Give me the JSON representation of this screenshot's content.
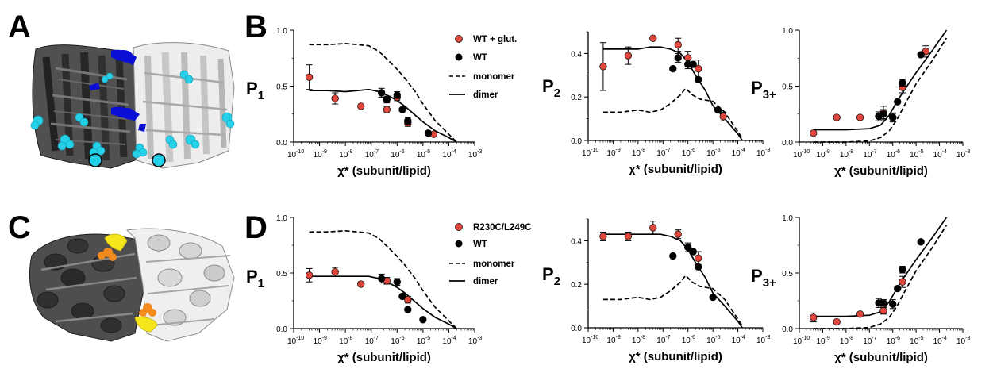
{
  "figure": {
    "panel_letters": [
      "A",
      "B",
      "C",
      "D"
    ],
    "colors": {
      "red_points": "#e0463c",
      "black_points": "#000000",
      "cyan": "#25d1e8",
      "blue": "#0b0fd6",
      "yellow": "#f5e51b",
      "orange": "#f28a1e",
      "dark_helix": "#3a3a3a",
      "light_helix": "#d6d6d6"
    },
    "x_axis": {
      "label": "χ* (subunit/lipid)",
      "scale": "log",
      "tick_base": "10",
      "tick_exponents": [
        "-10",
        "-9",
        "-8",
        "-7",
        "-6",
        "-5",
        "-4",
        "-3"
      ],
      "range": [
        1e-10,
        0.001
      ]
    },
    "y_labels": {
      "p1_main": "P",
      "p1_sub": "1",
      "p2_main": "P",
      "p2_sub": "2",
      "p3_main": "P",
      "p3_sub": "3+"
    },
    "legend_top": [
      "WT + glut.",
      "WT",
      "monomer",
      "dimer"
    ],
    "legend_bottom": [
      "R230C/L249C",
      "WT",
      "monomer",
      "dimer"
    ]
  },
  "chart_data": [
    {
      "panel": "B",
      "type": "scatter",
      "ylabel": "P1",
      "xlabel": "χ* (subunit/lipid)",
      "ylim": [
        0,
        1.0
      ],
      "yticks": [
        "0.0",
        "0.5",
        "1.0"
      ],
      "series": [
        {
          "name": "WT + glut.",
          "x": [
            4e-10,
            4e-09,
            4e-08,
            4e-07,
            1e-06,
            2.6e-06,
            2.6e-05
          ],
          "y": [
            0.58,
            0.39,
            0.32,
            0.29,
            0.4,
            0.17,
            0.07
          ],
          "err": [
            0.11,
            0.05,
            0,
            0.03,
            0.03,
            0.03,
            0.02
          ]
        },
        {
          "name": "WT",
          "x": [
            2.5e-07,
            4e-07,
            1e-06,
            1.6e-06,
            2.6e-06,
            1.6e-05
          ],
          "y": [
            0.44,
            0.38,
            0.42,
            0.29,
            0.19,
            0.08
          ],
          "err": [
            0.04,
            0.03,
            0.03,
            0,
            0.03,
            0
          ]
        },
        {
          "name": "monomer",
          "line": [
            [
              4e-10,
              0.87
            ],
            [
              2e-09,
              0.87
            ],
            [
              1e-08,
              0.88
            ],
            [
              3e-08,
              0.87
            ],
            [
              8e-08,
              0.86
            ],
            [
              2e-07,
              0.81
            ],
            [
              5e-07,
              0.72
            ],
            [
              1e-06,
              0.65
            ],
            [
              2e-06,
              0.57
            ],
            [
              5e-06,
              0.45
            ],
            [
              1e-05,
              0.34
            ],
            [
              3e-05,
              0.19
            ],
            [
              0.0001,
              0.07
            ],
            [
              0.0002,
              0
            ]
          ]
        },
        {
          "name": "dimer",
          "line": [
            [
              4e-10,
              0.46
            ],
            [
              2e-09,
              0.46
            ],
            [
              1e-08,
              0.45
            ],
            [
              3e-08,
              0.46
            ],
            [
              8e-08,
              0.47
            ],
            [
              2e-07,
              0.45
            ],
            [
              5e-07,
              0.41
            ],
            [
              1e-06,
              0.37
            ],
            [
              2e-06,
              0.32
            ],
            [
              5e-06,
              0.24
            ],
            [
              1e-05,
              0.18
            ],
            [
              3e-05,
              0.1
            ],
            [
              0.0001,
              0.04
            ],
            [
              0.0002,
              0
            ]
          ]
        }
      ]
    },
    {
      "panel": "B",
      "type": "scatter",
      "ylabel": "P2",
      "xlabel": "χ* (subunit/lipid)",
      "ylim": [
        0,
        0.5
      ],
      "yticks": [
        "0.0",
        "0.2",
        "0.4"
      ],
      "series": [
        {
          "name": "WT + glut.",
          "x": [
            4e-10,
            4e-09,
            4e-08,
            4e-07,
            1e-06,
            2.6e-06,
            2.6e-05
          ],
          "y": [
            0.34,
            0.39,
            0.47,
            0.44,
            0.38,
            0.33,
            0.11
          ],
          "err": [
            0.11,
            0.04,
            0,
            0.03,
            0.03,
            0.04,
            0.02
          ]
        },
        {
          "name": "WT",
          "x": [
            2.5e-07,
            4e-07,
            1e-06,
            1.6e-06,
            2.6e-06,
            1.6e-05
          ],
          "y": [
            0.33,
            0.38,
            0.35,
            0.35,
            0.28,
            0.14
          ],
          "err": [
            0,
            0.02,
            0.02,
            0.01,
            0,
            0
          ]
        },
        {
          "name": "monomer",
          "line": [
            [
              4e-10,
              0.13
            ],
            [
              2e-09,
              0.13
            ],
            [
              1e-08,
              0.14
            ],
            [
              3e-08,
              0.13
            ],
            [
              8e-08,
              0.14
            ],
            [
              2e-07,
              0.17
            ],
            [
              5e-07,
              0.21
            ],
            [
              8e-07,
              0.24
            ],
            [
              1.5e-06,
              0.21
            ],
            [
              3e-06,
              0.19
            ],
            [
              1e-05,
              0.18
            ],
            [
              3e-05,
              0.13
            ],
            [
              0.0001,
              0.04
            ],
            [
              0.00015,
              0.01
            ]
          ]
        },
        {
          "name": "dimer",
          "line": [
            [
              4e-10,
              0.42
            ],
            [
              2e-09,
              0.42
            ],
            [
              1e-08,
              0.42
            ],
            [
              3e-08,
              0.43
            ],
            [
              8e-08,
              0.43
            ],
            [
              2e-07,
              0.42
            ],
            [
              5e-07,
              0.4
            ],
            [
              1e-06,
              0.36
            ],
            [
              2e-06,
              0.3
            ],
            [
              5e-06,
              0.23
            ],
            [
              1e-05,
              0.16
            ],
            [
              3e-05,
              0.1
            ],
            [
              0.0001,
              0.03
            ],
            [
              0.00015,
              0.0
            ]
          ]
        }
      ]
    },
    {
      "panel": "B",
      "type": "scatter",
      "ylabel": "P3+",
      "xlabel": "χ* (subunit/lipid)",
      "ylim": [
        0,
        1.0
      ],
      "yticks": [
        "0.0",
        "0.5",
        "1.0"
      ],
      "series": [
        {
          "name": "WT + glut.",
          "x": [
            4e-10,
            4e-09,
            4e-08,
            4e-07,
            1e-06,
            2.6e-06,
            2.6e-05
          ],
          "y": [
            0.08,
            0.22,
            0.22,
            0.26,
            0.22,
            0.49,
            0.81
          ],
          "err": [
            0,
            0,
            0,
            0.06,
            0.04,
            0.05,
            0.05
          ]
        },
        {
          "name": "WT",
          "x": [
            2.5e-07,
            4e-07,
            1e-06,
            1.6e-06,
            2.6e-06,
            1.6e-05
          ],
          "y": [
            0.23,
            0.25,
            0.22,
            0.36,
            0.53,
            0.78
          ],
          "err": [
            0.04,
            0.04,
            0.03,
            0,
            0.03,
            0
          ]
        },
        {
          "name": "monomer",
          "line": [
            [
              4e-10,
              0.0
            ],
            [
              1e-08,
              0.0
            ],
            [
              1e-07,
              0.01
            ],
            [
              3e-07,
              0.04
            ],
            [
              7e-07,
              0.1
            ],
            [
              1.5e-06,
              0.2
            ],
            [
              3e-06,
              0.32
            ],
            [
              1e-05,
              0.52
            ],
            [
              5e-05,
              0.73
            ],
            [
              0.0002,
              0.93
            ]
          ]
        },
        {
          "name": "dimer",
          "line": [
            [
              4e-10,
              0.11
            ],
            [
              1e-08,
              0.11
            ],
            [
              1e-07,
              0.12
            ],
            [
              3e-07,
              0.15
            ],
            [
              7e-07,
              0.24
            ],
            [
              1.5e-06,
              0.36
            ],
            [
              3e-06,
              0.46
            ],
            [
              1e-05,
              0.62
            ],
            [
              5e-05,
              0.82
            ],
            [
              0.0002,
              1.0
            ]
          ]
        }
      ]
    },
    {
      "panel": "D",
      "type": "scatter",
      "ylabel": "P1",
      "xlabel": "χ* (subunit/lipid)",
      "ylim": [
        0,
        1.0
      ],
      "yticks": [
        "0.0",
        "0.5",
        "1.0"
      ],
      "series": [
        {
          "name": "R230C/L249C",
          "x": [
            4e-10,
            4e-09,
            4e-08,
            4e-07,
            2.6e-06
          ],
          "y": [
            0.48,
            0.51,
            0.4,
            0.43,
            0.26
          ],
          "err": [
            0.06,
            0.04,
            0.02,
            0.03,
            0.03
          ]
        },
        {
          "name": "WT",
          "x": [
            2.5e-07,
            1e-06,
            1.6e-06,
            2.6e-06,
            1e-05
          ],
          "y": [
            0.45,
            0.42,
            0.29,
            0.17,
            0.08
          ],
          "err": [
            0.04,
            0.03,
            0,
            0,
            0
          ]
        },
        {
          "name": "monomer",
          "line": [
            [
              4e-10,
              0.87
            ],
            [
              2e-09,
              0.87
            ],
            [
              1e-08,
              0.88
            ],
            [
              3e-08,
              0.87
            ],
            [
              8e-08,
              0.86
            ],
            [
              2e-07,
              0.81
            ],
            [
              5e-07,
              0.72
            ],
            [
              1e-06,
              0.65
            ],
            [
              2e-06,
              0.57
            ],
            [
              5e-06,
              0.45
            ],
            [
              1e-05,
              0.34
            ],
            [
              3e-05,
              0.19
            ],
            [
              0.0001,
              0.07
            ],
            [
              0.0002,
              0
            ]
          ]
        },
        {
          "name": "dimer",
          "line": [
            [
              4e-10,
              0.47
            ],
            [
              2e-09,
              0.47
            ],
            [
              1e-08,
              0.47
            ],
            [
              3e-08,
              0.47
            ],
            [
              8e-08,
              0.47
            ],
            [
              2e-07,
              0.45
            ],
            [
              5e-07,
              0.41
            ],
            [
              1e-06,
              0.37
            ],
            [
              2e-06,
              0.32
            ],
            [
              5e-06,
              0.24
            ],
            [
              1e-05,
              0.18
            ],
            [
              3e-05,
              0.1
            ],
            [
              0.0001,
              0.04
            ],
            [
              0.0002,
              0
            ]
          ]
        }
      ]
    },
    {
      "panel": "D",
      "type": "scatter",
      "ylabel": "P2",
      "xlabel": "χ* (subunit/lipid)",
      "ylim": [
        0,
        0.5
      ],
      "yticks": [
        "0.0",
        "0.2",
        "0.4"
      ],
      "series": [
        {
          "name": "R230C/L249C",
          "x": [
            4e-10,
            4e-09,
            4e-08,
            4e-07,
            2.6e-06
          ],
          "y": [
            0.42,
            0.42,
            0.46,
            0.43,
            0.32
          ],
          "err": [
            0.02,
            0.02,
            0.03,
            0.02,
            0.03
          ]
        },
        {
          "name": "WT",
          "x": [
            2.5e-07,
            1e-06,
            1.6e-06,
            2.6e-06,
            1e-05
          ],
          "y": [
            0.33,
            0.37,
            0.35,
            0.28,
            0.14
          ],
          "err": [
            0,
            0.02,
            0.01,
            0,
            0
          ]
        },
        {
          "name": "monomer",
          "line": [
            [
              4e-10,
              0.13
            ],
            [
              2e-09,
              0.13
            ],
            [
              1e-08,
              0.14
            ],
            [
              3e-08,
              0.13
            ],
            [
              8e-08,
              0.14
            ],
            [
              2e-07,
              0.17
            ],
            [
              5e-07,
              0.21
            ],
            [
              8e-07,
              0.24
            ],
            [
              1.5e-06,
              0.21
            ],
            [
              3e-06,
              0.19
            ],
            [
              1e-05,
              0.18
            ],
            [
              3e-05,
              0.13
            ],
            [
              0.0001,
              0.04
            ],
            [
              0.00015,
              0.01
            ]
          ]
        },
        {
          "name": "dimer",
          "line": [
            [
              4e-10,
              0.43
            ],
            [
              2e-09,
              0.43
            ],
            [
              1e-08,
              0.43
            ],
            [
              3e-08,
              0.43
            ],
            [
              8e-08,
              0.43
            ],
            [
              2e-07,
              0.42
            ],
            [
              5e-07,
              0.4
            ],
            [
              1e-06,
              0.36
            ],
            [
              2e-06,
              0.3
            ],
            [
              5e-06,
              0.23
            ],
            [
              1e-05,
              0.16
            ],
            [
              3e-05,
              0.1
            ],
            [
              0.0001,
              0.03
            ],
            [
              0.00015,
              0.0
            ]
          ]
        }
      ]
    },
    {
      "panel": "D",
      "type": "scatter",
      "ylabel": "P3+",
      "xlabel": "χ* (subunit/lipid)",
      "ylim": [
        0,
        1.0
      ],
      "yticks": [
        "0.0",
        "0.5",
        "1.0"
      ],
      "series": [
        {
          "name": "R230C/L249C",
          "x": [
            4e-10,
            4e-09,
            4e-08,
            4e-07,
            2.6e-06
          ],
          "y": [
            0.1,
            0.06,
            0.13,
            0.16,
            0.42
          ],
          "err": [
            0.04,
            0,
            0,
            0.03,
            0.05
          ]
        },
        {
          "name": "WT",
          "x": [
            2.5e-07,
            4e-07,
            1e-06,
            1.6e-06,
            2.6e-06,
            1.6e-05
          ],
          "y": [
            0.23,
            0.23,
            0.22,
            0.36,
            0.53,
            0.78
          ],
          "err": [
            0.04,
            0.03,
            0.04,
            0,
            0.03,
            0
          ]
        },
        {
          "name": "monomer",
          "line": [
            [
              4e-10,
              0.0
            ],
            [
              1e-08,
              0.0
            ],
            [
              1e-07,
              0.01
            ],
            [
              3e-07,
              0.04
            ],
            [
              7e-07,
              0.1
            ],
            [
              1.5e-06,
              0.2
            ],
            [
              3e-06,
              0.32
            ],
            [
              1e-05,
              0.52
            ],
            [
              5e-05,
              0.73
            ],
            [
              0.0002,
              0.93
            ]
          ]
        },
        {
          "name": "dimer",
          "line": [
            [
              4e-10,
              0.11
            ],
            [
              1e-08,
              0.11
            ],
            [
              1e-07,
              0.12
            ],
            [
              3e-07,
              0.15
            ],
            [
              7e-07,
              0.24
            ],
            [
              1.5e-06,
              0.36
            ],
            [
              3e-06,
              0.46
            ],
            [
              1e-05,
              0.62
            ],
            [
              5e-05,
              0.82
            ],
            [
              0.0002,
              1.0
            ]
          ]
        }
      ]
    }
  ]
}
